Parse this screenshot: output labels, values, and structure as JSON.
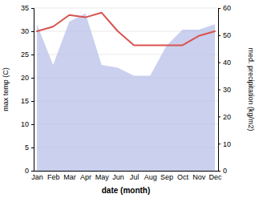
{
  "chart_data": {
    "type": "line",
    "categories": [
      "Jan",
      "Feb",
      "Mar",
      "Apr",
      "May",
      "Jun",
      "Jul",
      "Aug",
      "Sep",
      "Oct",
      "Nov",
      "Dec"
    ],
    "xlabel": "date (month)",
    "ylabel": "max temp (C)",
    "y2label": "med. precipitation (kg/m2)",
    "series": [
      {
        "type": "area",
        "axis": "y2",
        "color": "#b8c0e8",
        "values": [
          54,
          39,
          55,
          58,
          39,
          38,
          35,
          35,
          46,
          52,
          52,
          54
        ]
      },
      {
        "type": "line",
        "color": "#d9534f",
        "values": [
          30,
          31,
          33.5,
          33,
          34,
          30,
          27,
          27,
          27,
          27,
          29,
          30
        ]
      }
    ],
    "ylim": [
      0,
      35
    ],
    "yticks": [
      0,
      5,
      10,
      15,
      20,
      25,
      30,
      35
    ],
    "y2lim": [
      0,
      60
    ],
    "y2ticks": [
      0,
      10,
      20,
      30,
      40,
      50,
      60
    ],
    "grid": true
  }
}
